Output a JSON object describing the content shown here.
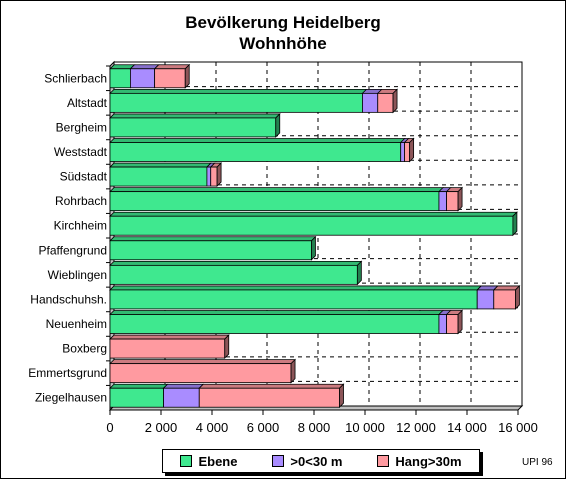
{
  "title_line1": "Bevölkerung Heidelberg",
  "title_line2": "Wohnhöhe",
  "credit": "UPI 96",
  "chart_data": {
    "type": "bar",
    "orientation": "horizontal",
    "stacked": true,
    "categories": [
      "Schlierbach",
      "Altstadt",
      "Bergheim",
      "Weststadt",
      "Südstadt",
      "Rohrbach",
      "Kirchheim",
      "Pfaffengrund",
      "Wieblingen",
      "Handschuhsh.",
      "Neuenheim",
      "Boxberg",
      "Emmertsgrund",
      "Ziegelhausen"
    ],
    "series": [
      {
        "name": "Ebene",
        "color": "#3fe88f",
        "values": [
          800,
          9900,
          6500,
          11400,
          3800,
          12900,
          15800,
          7900,
          9700,
          14400,
          12900,
          0,
          0,
          2100
        ]
      },
      {
        "name": ">0<30 m",
        "color": "#a98cff",
        "values": [
          950,
          600,
          0,
          150,
          150,
          300,
          0,
          0,
          0,
          650,
          300,
          0,
          0,
          1400
        ]
      },
      {
        "name": "Hang>30m",
        "color": "#ff9aa0",
        "values": [
          1200,
          600,
          0,
          200,
          250,
          450,
          0,
          0,
          0,
          850,
          450,
          4500,
          7100,
          5500
        ]
      }
    ],
    "xlim": [
      0,
      16000
    ],
    "xticks": [
      0,
      2000,
      4000,
      6000,
      8000,
      10000,
      12000,
      14000,
      16000
    ],
    "xtick_labels": [
      "0",
      "2 000",
      "4 000",
      "6 000",
      "8 000",
      "10 000",
      "12 000",
      "14 000",
      "16 000"
    ],
    "grid": true,
    "legend_position": "bottom"
  }
}
